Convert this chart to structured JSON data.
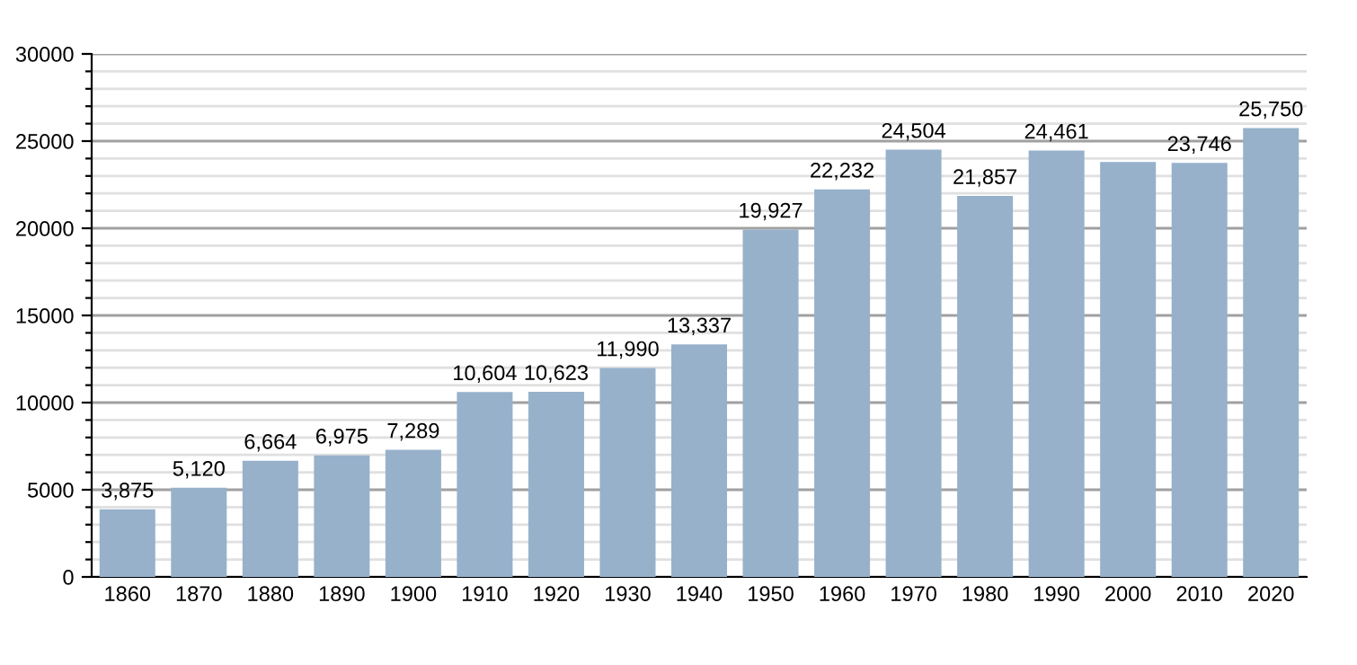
{
  "chart_data": {
    "type": "bar",
    "categories": [
      "1860",
      "1870",
      "1880",
      "1890",
      "1900",
      "1910",
      "1920",
      "1930",
      "1940",
      "1950",
      "1960",
      "1970",
      "1980",
      "1990",
      "2000",
      "2010",
      "2020"
    ],
    "values": [
      3875,
      5120,
      6664,
      6975,
      7289,
      10604,
      10623,
      11990,
      13337,
      19927,
      22232,
      24504,
      21857,
      24461,
      23800,
      23746,
      25750
    ],
    "value_labels": [
      "3,875",
      "5,120",
      "6,664",
      "6,975",
      "7,289",
      "10,604",
      "10,623",
      "11,990",
      "13,337",
      "19,927",
      "22,232",
      "24,504",
      "21,857",
      "24,461",
      null,
      "23,746",
      "25,750"
    ],
    "color": "#97b1cb",
    "ylim": [
      0,
      30000
    ],
    "yticks": [
      0,
      {
        "value": 1000,
        "label": null
      },
      {
        "value": 2000,
        "label": null
      },
      {
        "value": 3000,
        "label": null
      },
      {
        "value": 4000,
        "label": null
      },
      5000,
      {
        "value": 6000,
        "label": null
      },
      {
        "value": 7000,
        "label": null
      },
      {
        "value": 8000,
        "label": null
      },
      {
        "value": 9000,
        "label": null
      },
      10000,
      {
        "value": 11000,
        "label": null
      },
      {
        "value": 12000,
        "label": null
      },
      {
        "value": 13000,
        "label": null
      },
      {
        "value": 14000,
        "label": null
      },
      15000,
      {
        "value": 16000,
        "label": null
      },
      {
        "value": 17000,
        "label": null
      },
      {
        "value": 18000,
        "label": null
      },
      {
        "value": 19000,
        "label": null
      },
      20000,
      {
        "value": 21000,
        "label": null
      },
      {
        "value": 22000,
        "label": null
      },
      {
        "value": 23000,
        "label": null
      },
      {
        "value": 24000,
        "label": null
      },
      25000,
      {
        "value": 26000,
        "label": null
      },
      {
        "value": 27000,
        "label": null
      },
      {
        "value": 28000,
        "label": null
      },
      {
        "value": 29000,
        "label": null
      },
      30000
    ],
    "grid": "y",
    "legend": false
  }
}
